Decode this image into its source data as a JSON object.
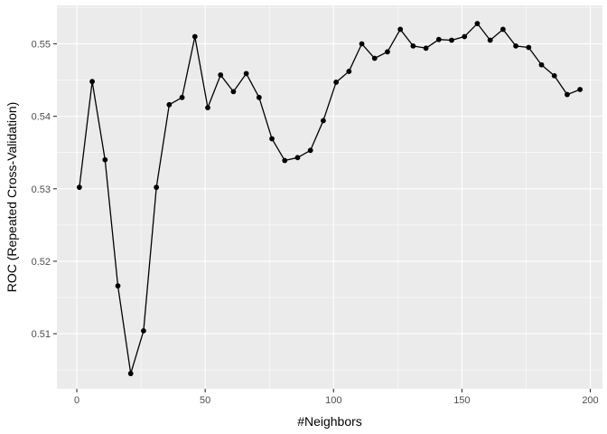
{
  "chart_data": {
    "type": "line",
    "title": "",
    "xlabel": "#Neighbors",
    "ylabel": "ROC (Repeated Cross-Validation)",
    "xlim": [
      -7.75,
      204.75
    ],
    "ylim": [
      0.5024,
      0.5553
    ],
    "x_ticks": [
      0,
      50,
      100,
      150,
      200
    ],
    "x_tick_labels": [
      "0",
      "50",
      "100",
      "150",
      "200"
    ],
    "y_ticks": [
      0.51,
      0.52,
      0.53,
      0.54,
      0.55
    ],
    "y_tick_labels": [
      "0.51",
      "0.52",
      "0.53",
      "0.54",
      "0.55"
    ],
    "grid": true,
    "series": [
      {
        "x": [
          1,
          6,
          11,
          16,
          21,
          26,
          31,
          36,
          41,
          46,
          51,
          56,
          61,
          66,
          71,
          76,
          81,
          86,
          91,
          96,
          101,
          106,
          111,
          116,
          121,
          126,
          131,
          136,
          141,
          146,
          151,
          156,
          161,
          166,
          171,
          176,
          181,
          186,
          191,
          196
        ],
        "values": [
          0.5302,
          0.5448,
          0.534,
          0.5166,
          0.5045,
          0.5104,
          0.5302,
          0.5416,
          0.5426,
          0.551,
          0.5412,
          0.5457,
          0.5434,
          0.5459,
          0.5426,
          0.5369,
          0.5339,
          0.5343,
          0.5353,
          0.5394,
          0.5447,
          0.5462,
          0.55,
          0.548,
          0.5489,
          0.552,
          0.5497,
          0.5494,
          0.5506,
          0.5505,
          0.551,
          0.5528,
          0.5505,
          0.552,
          0.5497,
          0.5495,
          0.5471,
          0.5456,
          0.543,
          0.5437
        ]
      }
    ]
  },
  "colors": {
    "panel": "#ebebeb",
    "grid": "#ffffff",
    "line": "#000000",
    "point": "#000000"
  }
}
